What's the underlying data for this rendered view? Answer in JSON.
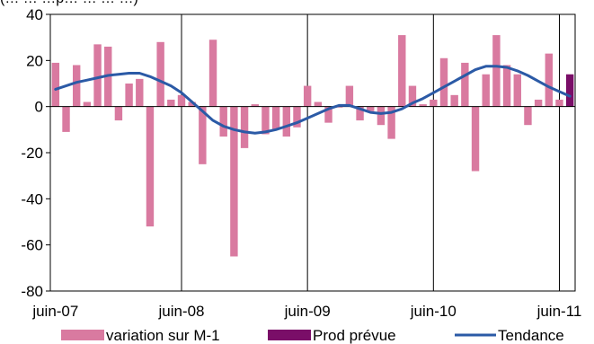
{
  "header": {
    "partial_label": "(… … …p… … … …)"
  },
  "chart_data": {
    "type": "bar",
    "ylim": [
      -80,
      40
    ],
    "yticks": [
      40,
      20,
      0,
      -20,
      -40,
      -60,
      -80
    ],
    "xtick_labels": [
      "juin-07",
      "juin-08",
      "juin-09",
      "juin-10",
      "juin-11"
    ],
    "grid": "vertical",
    "legend_position": "bottom",
    "series": [
      {
        "name": "variation sur M-1",
        "type": "bar",
        "color": "#d97aa0",
        "values": [
          19,
          -11,
          18,
          2,
          27,
          26,
          -6,
          10,
          12,
          -52,
          28,
          3,
          5,
          2,
          -25,
          29,
          -13,
          -65,
          -18,
          1,
          -12,
          -10,
          -13,
          -9,
          9,
          2,
          -7,
          0,
          9,
          -6,
          -2,
          -8,
          -14,
          31,
          9,
          1,
          3,
          21,
          5,
          19,
          -28,
          14,
          31,
          18,
          14,
          -8,
          3,
          23,
          3
        ]
      },
      {
        "name": "Prod prévue",
        "type": "bar",
        "color": "#7a0e68",
        "values": [
          null,
          null,
          null,
          null,
          null,
          null,
          null,
          null,
          null,
          null,
          null,
          null,
          null,
          null,
          null,
          null,
          null,
          null,
          null,
          null,
          null,
          null,
          null,
          null,
          null,
          null,
          null,
          null,
          null,
          null,
          null,
          null,
          null,
          null,
          null,
          null,
          null,
          null,
          null,
          null,
          null,
          null,
          null,
          null,
          null,
          null,
          null,
          null,
          null,
          14
        ]
      },
      {
        "name": "Tendance",
        "type": "line",
        "color": "#2b5aa6",
        "values": [
          7.5,
          9,
          10.5,
          11.5,
          12.5,
          13.5,
          14,
          14.5,
          14.5,
          13,
          11,
          9,
          6,
          2,
          -2,
          -6,
          -8.5,
          -10,
          -11,
          -11.5,
          -11,
          -10,
          -8.5,
          -7,
          -5,
          -3,
          -1,
          0.5,
          0.5,
          -1,
          -2.5,
          -3,
          -2.5,
          -1,
          1.5,
          3.5,
          6,
          8.5,
          11,
          13.5,
          16,
          17.5,
          17.5,
          17,
          15.5,
          13.5,
          11,
          8.5,
          6.5,
          4.5
        ]
      }
    ]
  }
}
